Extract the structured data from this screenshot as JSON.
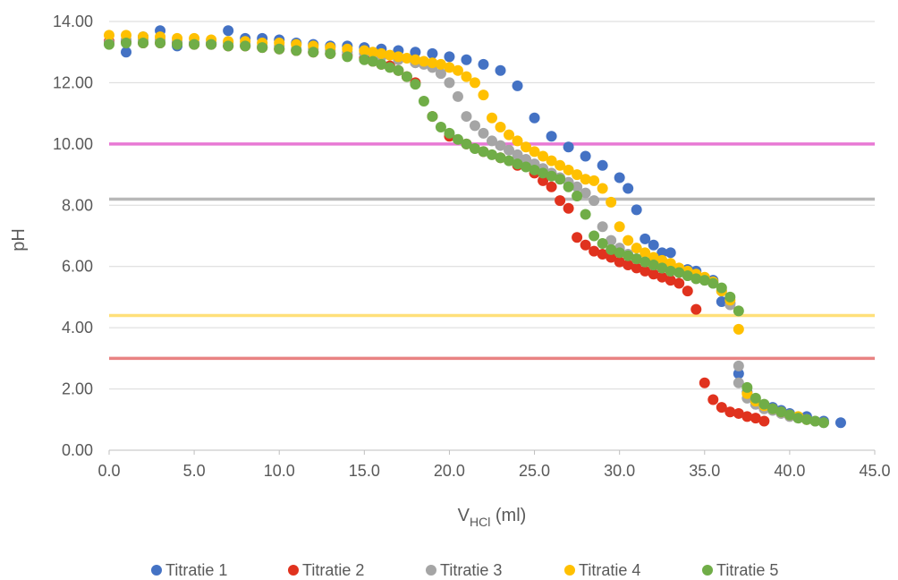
{
  "chart_data": {
    "type": "scatter",
    "title": "",
    "xlabel": "V",
    "xlabel_sub": "HCl",
    "xlabel_unit": " (ml)",
    "ylabel": "pH",
    "xlim": [
      0,
      45
    ],
    "ylim": [
      0,
      14
    ],
    "x_ticks": [
      "0.0",
      "5.0",
      "10.0",
      "15.0",
      "20.0",
      "25.0",
      "30.0",
      "35.0",
      "40.0",
      "45.0"
    ],
    "y_ticks": [
      "0.00",
      "2.00",
      "4.00",
      "6.00",
      "8.00",
      "10.00",
      "12.00",
      "14.00"
    ],
    "grid": true,
    "legend_position": "bottom",
    "reference_lines": [
      {
        "y": 10.0,
        "color": "#e879d4"
      },
      {
        "y": 8.2,
        "color": "#b8b8b8"
      },
      {
        "y": 4.4,
        "color": "#ffe07a"
      },
      {
        "y": 3.0,
        "color": "#e98383"
      }
    ],
    "series": [
      {
        "name": "Titratie 1",
        "color": "#4472c4",
        "points": [
          [
            0,
            13.3
          ],
          [
            1,
            13.0
          ],
          [
            2,
            13.5
          ],
          [
            3,
            13.7
          ],
          [
            4,
            13.2
          ],
          [
            5,
            13.3
          ],
          [
            6,
            13.3
          ],
          [
            7,
            13.7
          ],
          [
            8,
            13.45
          ],
          [
            9,
            13.45
          ],
          [
            10,
            13.4
          ],
          [
            11,
            13.3
          ],
          [
            12,
            13.25
          ],
          [
            13,
            13.2
          ],
          [
            14,
            13.2
          ],
          [
            15,
            13.15
          ],
          [
            16,
            13.1
          ],
          [
            17,
            13.05
          ],
          [
            18,
            13.0
          ],
          [
            19,
            12.95
          ],
          [
            20,
            12.85
          ],
          [
            21,
            12.75
          ],
          [
            22,
            12.6
          ],
          [
            23,
            12.4
          ],
          [
            24,
            11.9
          ],
          [
            25,
            10.85
          ],
          [
            26,
            10.25
          ],
          [
            27,
            9.9
          ],
          [
            28,
            9.6
          ],
          [
            29,
            9.3
          ],
          [
            30,
            8.9
          ],
          [
            30.5,
            8.55
          ],
          [
            31,
            7.85
          ],
          [
            31.5,
            6.9
          ],
          [
            32,
            6.7
          ],
          [
            32.5,
            6.45
          ],
          [
            33,
            6.45
          ],
          [
            34,
            5.9
          ],
          [
            34.5,
            5.85
          ],
          [
            35,
            5.6
          ],
          [
            35.5,
            5.55
          ],
          [
            36,
            4.85
          ],
          [
            36.5,
            4.8
          ],
          [
            37,
            2.5
          ],
          [
            37.5,
            1.9
          ],
          [
            38,
            1.5
          ],
          [
            38.5,
            1.4
          ],
          [
            39,
            1.4
          ],
          [
            39.5,
            1.3
          ],
          [
            40,
            1.2
          ],
          [
            41,
            1.1
          ],
          [
            42,
            0.95
          ],
          [
            43,
            0.9
          ]
        ]
      },
      {
        "name": "Titratie 2",
        "color": "#e0321e",
        "points": [
          [
            0,
            13.35
          ],
          [
            1,
            13.35
          ],
          [
            2,
            13.3
          ],
          [
            3,
            13.3
          ],
          [
            4,
            13.3
          ],
          [
            5,
            13.25
          ],
          [
            6,
            13.25
          ],
          [
            7,
            13.2
          ],
          [
            8,
            13.2
          ],
          [
            9,
            13.15
          ],
          [
            10,
            13.1
          ],
          [
            11,
            13.05
          ],
          [
            12,
            13.0
          ],
          [
            13,
            12.95
          ],
          [
            14,
            12.9
          ],
          [
            15,
            12.8
          ],
          [
            15.5,
            12.7
          ],
          [
            16,
            12.6
          ],
          [
            16.5,
            12.55
          ],
          [
            17,
            12.4
          ],
          [
            17.5,
            12.2
          ],
          [
            18,
            12.0
          ],
          [
            19,
            10.9
          ],
          [
            20,
            10.25
          ],
          [
            21,
            10.0
          ],
          [
            22,
            9.75
          ],
          [
            23,
            9.55
          ],
          [
            24,
            9.3
          ],
          [
            25,
            9.05
          ],
          [
            25.5,
            8.8
          ],
          [
            26,
            8.6
          ],
          [
            26.5,
            8.15
          ],
          [
            27,
            7.9
          ],
          [
            27.5,
            6.95
          ],
          [
            28,
            6.7
          ],
          [
            28.5,
            6.5
          ],
          [
            29,
            6.4
          ],
          [
            29.5,
            6.3
          ],
          [
            30,
            6.15
          ],
          [
            30.5,
            6.05
          ],
          [
            31,
            5.95
          ],
          [
            31.5,
            5.85
          ],
          [
            32,
            5.75
          ],
          [
            32.5,
            5.65
          ],
          [
            33,
            5.55
          ],
          [
            33.5,
            5.45
          ],
          [
            34,
            5.2
          ],
          [
            34.5,
            4.6
          ],
          [
            35,
            2.2
          ],
          [
            35.5,
            1.65
          ],
          [
            36,
            1.4
          ],
          [
            36.5,
            1.25
          ],
          [
            37,
            1.2
          ],
          [
            37.5,
            1.1
          ],
          [
            38,
            1.05
          ],
          [
            38.5,
            0.95
          ]
        ]
      },
      {
        "name": "Titratie 3",
        "color": "#a5a5a5",
        "points": [
          [
            0,
            13.3
          ],
          [
            1,
            13.4
          ],
          [
            2,
            13.4
          ],
          [
            3,
            13.4
          ],
          [
            4,
            13.35
          ],
          [
            5,
            13.3
          ],
          [
            6,
            13.3
          ],
          [
            7,
            13.3
          ],
          [
            8,
            13.25
          ],
          [
            9,
            13.2
          ],
          [
            10,
            13.2
          ],
          [
            11,
            13.1
          ],
          [
            12,
            13.1
          ],
          [
            13,
            13.05
          ],
          [
            14,
            13.0
          ],
          [
            15,
            12.95
          ],
          [
            16,
            12.85
          ],
          [
            17,
            12.75
          ],
          [
            18,
            12.65
          ],
          [
            18.5,
            12.6
          ],
          [
            19,
            12.5
          ],
          [
            19.5,
            12.3
          ],
          [
            20,
            12.0
          ],
          [
            20.5,
            11.55
          ],
          [
            21,
            10.9
          ],
          [
            21.5,
            10.6
          ],
          [
            22,
            10.35
          ],
          [
            22.5,
            10.1
          ],
          [
            23,
            9.95
          ],
          [
            23.5,
            9.8
          ],
          [
            24,
            9.65
          ],
          [
            24.5,
            9.5
          ],
          [
            25,
            9.35
          ],
          [
            25.5,
            9.2
          ],
          [
            26,
            9.05
          ],
          [
            26.5,
            8.9
          ],
          [
            27,
            8.75
          ],
          [
            27.5,
            8.6
          ],
          [
            28,
            8.4
          ],
          [
            28.5,
            8.15
          ],
          [
            29,
            7.3
          ],
          [
            29.5,
            6.85
          ],
          [
            30,
            6.6
          ],
          [
            30.5,
            6.4
          ],
          [
            31,
            6.25
          ],
          [
            31.5,
            6.15
          ],
          [
            32,
            6.05
          ],
          [
            32.5,
            5.95
          ],
          [
            33,
            5.85
          ],
          [
            33.5,
            5.8
          ],
          [
            34,
            5.7
          ],
          [
            34.5,
            5.6
          ],
          [
            35,
            5.55
          ],
          [
            35.5,
            5.45
          ],
          [
            36,
            5.2
          ],
          [
            36.5,
            4.75
          ],
          [
            37,
            2.75
          ],
          [
            37,
            2.2
          ],
          [
            37.5,
            1.7
          ],
          [
            38,
            1.5
          ],
          [
            38.5,
            1.35
          ],
          [
            39,
            1.3
          ],
          [
            39.5,
            1.2
          ],
          [
            40,
            1.1
          ],
          [
            40.5,
            1.05
          ],
          [
            41,
            1.0
          ],
          [
            41.5,
            0.95
          ],
          [
            42,
            0.9
          ]
        ]
      },
      {
        "name": "Titratie 4",
        "color": "#ffc000",
        "points": [
          [
            0,
            13.55
          ],
          [
            1,
            13.55
          ],
          [
            2,
            13.5
          ],
          [
            3,
            13.5
          ],
          [
            4,
            13.45
          ],
          [
            5,
            13.45
          ],
          [
            6,
            13.4
          ],
          [
            7,
            13.35
          ],
          [
            8,
            13.35
          ],
          [
            9,
            13.3
          ],
          [
            10,
            13.3
          ],
          [
            11,
            13.25
          ],
          [
            12,
            13.2
          ],
          [
            13,
            13.15
          ],
          [
            14,
            13.1
          ],
          [
            15,
            13.05
          ],
          [
            15.5,
            13.0
          ],
          [
            16,
            12.95
          ],
          [
            16.5,
            12.9
          ],
          [
            17,
            12.85
          ],
          [
            17.5,
            12.8
          ],
          [
            18,
            12.75
          ],
          [
            18.5,
            12.7
          ],
          [
            19,
            12.65
          ],
          [
            19.5,
            12.6
          ],
          [
            20,
            12.5
          ],
          [
            20.5,
            12.4
          ],
          [
            21,
            12.2
          ],
          [
            21.5,
            12.0
          ],
          [
            22,
            11.6
          ],
          [
            22.5,
            10.85
          ],
          [
            23,
            10.55
          ],
          [
            23.5,
            10.3
          ],
          [
            24,
            10.1
          ],
          [
            24.5,
            9.9
          ],
          [
            25,
            9.75
          ],
          [
            25.5,
            9.6
          ],
          [
            26,
            9.45
          ],
          [
            26.5,
            9.3
          ],
          [
            27,
            9.15
          ],
          [
            27.5,
            9.0
          ],
          [
            28,
            8.85
          ],
          [
            28.5,
            8.8
          ],
          [
            29,
            8.55
          ],
          [
            29.5,
            8.1
          ],
          [
            30,
            7.3
          ],
          [
            30.5,
            6.85
          ],
          [
            31,
            6.6
          ],
          [
            31.5,
            6.45
          ],
          [
            32,
            6.3
          ],
          [
            32.5,
            6.2
          ],
          [
            33,
            6.1
          ],
          [
            33.5,
            5.95
          ],
          [
            34,
            5.85
          ],
          [
            34.5,
            5.75
          ],
          [
            35,
            5.65
          ],
          [
            35.5,
            5.5
          ],
          [
            36,
            5.2
          ],
          [
            36.5,
            4.9
          ],
          [
            37,
            3.95
          ],
          [
            37.5,
            1.85
          ],
          [
            38,
            1.6
          ],
          [
            38.5,
            1.45
          ],
          [
            39,
            1.35
          ],
          [
            39.5,
            1.25
          ],
          [
            40,
            1.15
          ],
          [
            40.5,
            1.1
          ],
          [
            41,
            1.0
          ]
        ]
      },
      {
        "name": "Titratie 5",
        "color": "#70ad47",
        "points": [
          [
            0,
            13.25
          ],
          [
            1,
            13.3
          ],
          [
            2,
            13.3
          ],
          [
            3,
            13.3
          ],
          [
            4,
            13.25
          ],
          [
            5,
            13.25
          ],
          [
            6,
            13.25
          ],
          [
            7,
            13.2
          ],
          [
            8,
            13.2
          ],
          [
            9,
            13.15
          ],
          [
            10,
            13.1
          ],
          [
            11,
            13.05
          ],
          [
            12,
            13.0
          ],
          [
            13,
            12.95
          ],
          [
            14,
            12.85
          ],
          [
            15,
            12.75
          ],
          [
            15.5,
            12.7
          ],
          [
            16,
            12.6
          ],
          [
            16.5,
            12.5
          ],
          [
            17,
            12.4
          ],
          [
            17.5,
            12.2
          ],
          [
            18,
            11.95
          ],
          [
            18.5,
            11.4
          ],
          [
            19,
            10.9
          ],
          [
            19.5,
            10.55
          ],
          [
            20,
            10.35
          ],
          [
            20.5,
            10.15
          ],
          [
            21,
            10.0
          ],
          [
            21.5,
            9.85
          ],
          [
            22,
            9.75
          ],
          [
            22.5,
            9.65
          ],
          [
            23,
            9.55
          ],
          [
            23.5,
            9.45
          ],
          [
            24,
            9.35
          ],
          [
            24.5,
            9.25
          ],
          [
            25,
            9.15
          ],
          [
            25.5,
            9.05
          ],
          [
            26,
            8.95
          ],
          [
            26.5,
            8.85
          ],
          [
            27,
            8.6
          ],
          [
            27.5,
            8.3
          ],
          [
            28,
            7.7
          ],
          [
            28.5,
            7.0
          ],
          [
            29,
            6.75
          ],
          [
            29.5,
            6.55
          ],
          [
            30,
            6.45
          ],
          [
            30.5,
            6.35
          ],
          [
            31,
            6.25
          ],
          [
            31.5,
            6.15
          ],
          [
            32,
            6.05
          ],
          [
            32.5,
            5.95
          ],
          [
            33,
            5.85
          ],
          [
            33.5,
            5.8
          ],
          [
            34,
            5.7
          ],
          [
            34.5,
            5.6
          ],
          [
            35,
            5.55
          ],
          [
            35.5,
            5.45
          ],
          [
            36,
            5.3
          ],
          [
            36.5,
            5.0
          ],
          [
            37,
            4.55
          ],
          [
            37.5,
            2.05
          ],
          [
            38,
            1.7
          ],
          [
            38.5,
            1.5
          ],
          [
            39,
            1.35
          ],
          [
            39.5,
            1.25
          ],
          [
            40,
            1.15
          ],
          [
            40.5,
            1.05
          ],
          [
            41,
            1.0
          ],
          [
            41.5,
            0.95
          ],
          [
            42,
            0.9
          ]
        ]
      }
    ]
  }
}
